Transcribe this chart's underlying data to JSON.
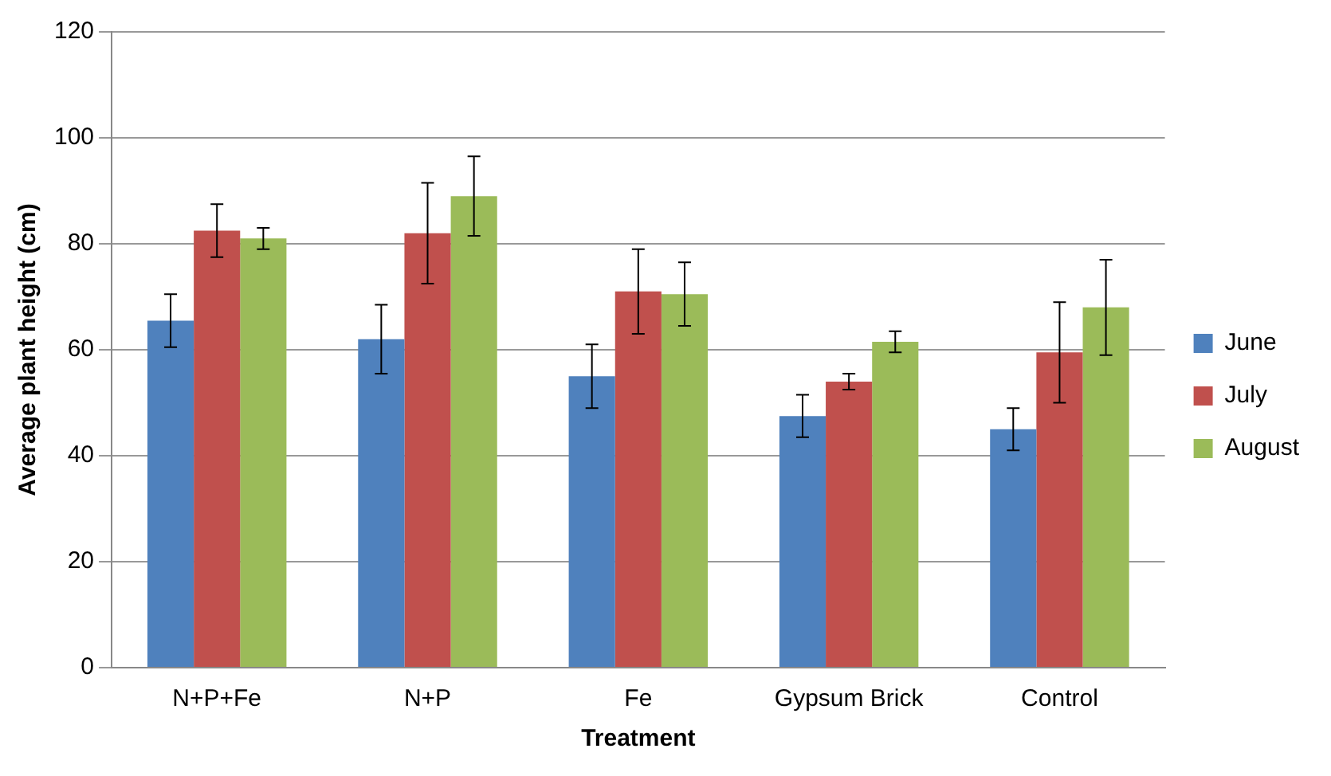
{
  "chart_data": {
    "type": "bar",
    "xlabel": "Treatment",
    "ylabel": "Average plant height (cm)",
    "categories": [
      "N+P+Fe",
      "N+P",
      "Fe",
      "Gypsum Brick",
      "Control"
    ],
    "series": [
      {
        "name": "June",
        "color": "#4f81bd",
        "values": [
          65.5,
          62,
          55,
          47.5,
          45
        ],
        "errors": [
          5,
          6.5,
          6,
          4,
          4
        ]
      },
      {
        "name": "July",
        "color": "#c0504d",
        "values": [
          82.5,
          82,
          71,
          54,
          59.5
        ],
        "errors": [
          5,
          9.5,
          8,
          1.5,
          9.5
        ]
      },
      {
        "name": "August",
        "color": "#9bbb59",
        "values": [
          81,
          89,
          70.5,
          61.5,
          68
        ],
        "errors": [
          2,
          7.5,
          6,
          2,
          9
        ]
      }
    ],
    "ylim": [
      0,
      120
    ],
    "yticks": [
      0,
      20,
      40,
      60,
      80,
      100,
      120
    ],
    "grid": "y",
    "legend": "right"
  }
}
